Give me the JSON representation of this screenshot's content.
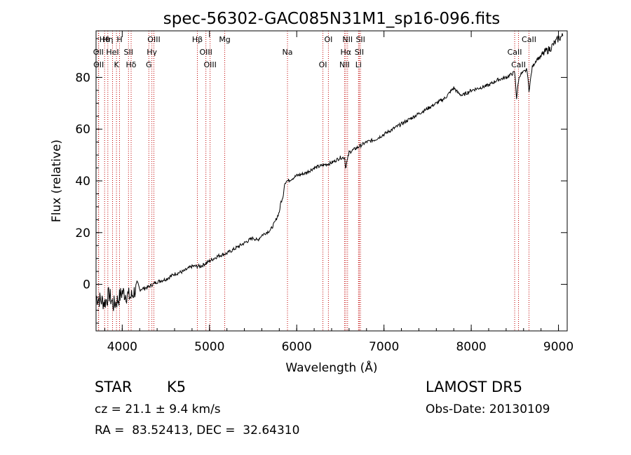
{
  "chart_data": {
    "type": "line",
    "title": "spec-56302-GAC085N31M1_sp16-096.fits",
    "xlabel": "Wavelength (Å)",
    "ylabel": "Flux (relative)",
    "xlim": [
      3700,
      9100
    ],
    "ylim": [
      -18,
      98
    ],
    "xticks": [
      4000,
      5000,
      6000,
      7000,
      8000,
      9000
    ],
    "yticks": [
      0,
      20,
      40,
      60,
      80
    ],
    "line_color": "#000000",
    "marker_color": "#c00000",
    "series": [
      {
        "x": [
          3700,
          3750,
          3800,
          3850,
          3900,
          3950,
          4000,
          4050,
          4100,
          4150,
          4200,
          4300,
          4400,
          4500,
          4600,
          4700,
          4800,
          4900,
          5000,
          5100,
          5200,
          5300,
          5400,
          5500,
          5550,
          5600,
          5650,
          5700,
          5750,
          5800,
          5820,
          5840,
          5860,
          5880,
          5900,
          5950,
          6000,
          6100,
          6200,
          6300,
          6400,
          6500,
          6550,
          6560,
          6600,
          6700,
          6800,
          6900,
          7000,
          7100,
          7200,
          7300,
          7400,
          7500,
          7600,
          7700,
          7800,
          7850,
          7900,
          7950,
          8000,
          8100,
          8200,
          8300,
          8400,
          8450,
          8498,
          8520,
          8542,
          8560,
          8600,
          8640,
          8662,
          8700,
          8750,
          8800,
          8850,
          8900,
          8950,
          9000,
          9050
        ],
        "values": [
          -5,
          -6,
          -7,
          -4,
          -8,
          -6,
          -3,
          -4,
          -5,
          -2,
          -2,
          -1,
          1,
          2,
          4,
          5,
          7,
          7,
          9,
          11,
          12,
          14,
          16,
          18,
          17,
          19,
          20,
          21,
          24,
          28,
          32,
          33,
          39,
          40,
          40,
          41,
          42,
          43,
          45,
          46,
          47,
          49,
          49,
          45,
          51,
          53,
          55,
          56,
          58,
          60,
          62,
          64,
          66,
          68,
          70,
          72,
          76,
          74,
          73,
          74,
          75,
          76,
          77,
          79,
          80,
          81,
          82,
          72,
          79,
          81,
          82,
          83,
          75,
          84,
          87,
          88,
          90,
          91,
          93,
          95,
          96
        ]
      }
    ],
    "spectral_lines": [
      {
        "label": "Hθ",
        "wavelength": 3798
      },
      {
        "label": "OII",
        "wavelength": 3727
      },
      {
        "label": "OII",
        "wavelength": 3730
      },
      {
        "label": "Hη",
        "wavelength": 3835
      },
      {
        "label": "HeI",
        "wavelength": 3889
      },
      {
        "label": "K",
        "wavelength": 3934
      },
      {
        "label": "H",
        "wavelength": 3969
      },
      {
        "label": "SII",
        "wavelength": 4072
      },
      {
        "label": "Hδ",
        "wavelength": 4102
      },
      {
        "label": "OIII",
        "wavelength": 4363
      },
      {
        "label": "Hγ",
        "wavelength": 4340
      },
      {
        "label": "G",
        "wavelength": 4305
      },
      {
        "label": "Hβ",
        "wavelength": 4861
      },
      {
        "label": "OIII",
        "wavelength": 4959
      },
      {
        "label": "OIII",
        "wavelength": 5007
      },
      {
        "label": "Mg",
        "wavelength": 5175
      },
      {
        "label": "Na",
        "wavelength": 5894
      },
      {
        "label": "OI",
        "wavelength": 6300
      },
      {
        "label": "OI",
        "wavelength": 6363
      },
      {
        "label": "Hα",
        "wavelength": 6563
      },
      {
        "label": "NII",
        "wavelength": 6548
      },
      {
        "label": "NII",
        "wavelength": 6583
      },
      {
        "label": "SII",
        "wavelength": 6717
      },
      {
        "label": "Li",
        "wavelength": 6708
      },
      {
        "label": "SII",
        "wavelength": 6731
      },
      {
        "label": "CaII",
        "wavelength": 8498
      },
      {
        "label": "CaII",
        "wavelength": 8542
      },
      {
        "label": "CaII",
        "wavelength": 8662
      }
    ]
  },
  "info": {
    "class": "STAR",
    "subclass": "K5",
    "survey": "LAMOST DR5",
    "cz": "cz = 21.1 ± 9.4 km/s",
    "obs_date": "Obs-Date: 20130109",
    "coords": "RA =  83.52413, DEC =  32.64310"
  }
}
